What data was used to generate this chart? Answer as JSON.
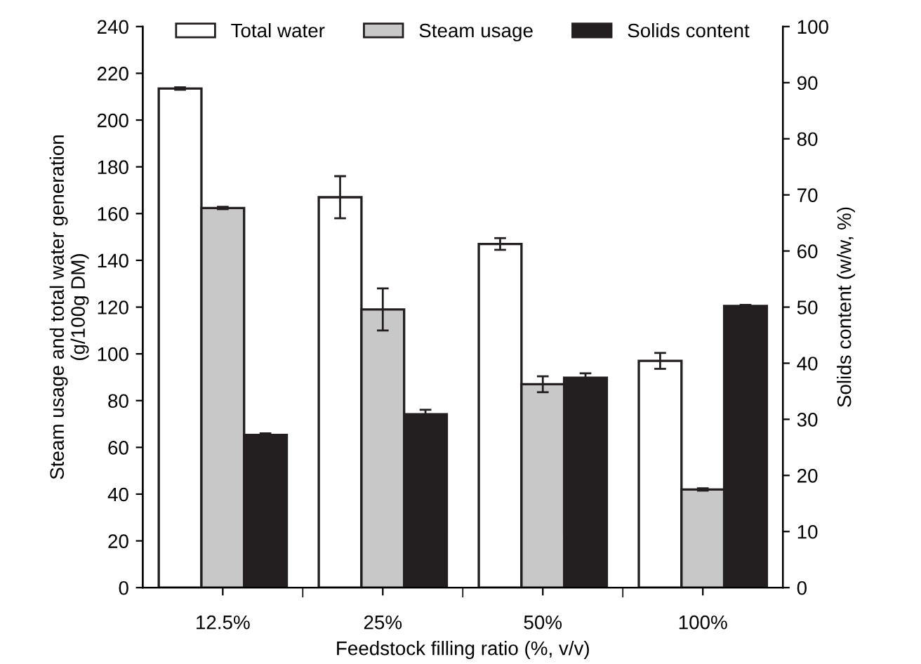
{
  "chart_data": {
    "type": "bar",
    "xlabel": "Feedstock filling ratio (%, v/v)",
    "ylabel": "Steam usage and total water generation\n(g/100g DM)",
    "y2label": "Solids content (w/w, %)",
    "categories": [
      "12.5%",
      "25%",
      "50%",
      "100%"
    ],
    "series": [
      {
        "name": "Total water",
        "color": "#ffffff",
        "values": [
          213.5,
          167,
          147,
          97
        ],
        "errors": [
          0.5,
          9,
          2.5,
          3.4
        ]
      },
      {
        "name": "Steam usage",
        "color": "#c8c8c8",
        "values": [
          162.4,
          119,
          87,
          42
        ],
        "errors": [
          0.5,
          9,
          3.4,
          0.5
        ]
      },
      {
        "name": "Solids content",
        "color": "#231f20",
        "axis": "y2",
        "values": [
          27.2,
          30.9,
          37.4,
          50.2
        ],
        "errors": [
          0.3,
          0.8,
          0.8,
          0.2
        ]
      }
    ],
    "ylim": [
      0,
      240
    ],
    "yticks": [
      0,
      20,
      40,
      60,
      80,
      100,
      120,
      140,
      160,
      180,
      200,
      220,
      240
    ],
    "y2lim": [
      0,
      100
    ],
    "y2ticks": [
      0,
      10,
      20,
      30,
      40,
      50,
      60,
      70,
      80,
      90,
      100
    ],
    "legend": "top",
    "grid": false
  }
}
